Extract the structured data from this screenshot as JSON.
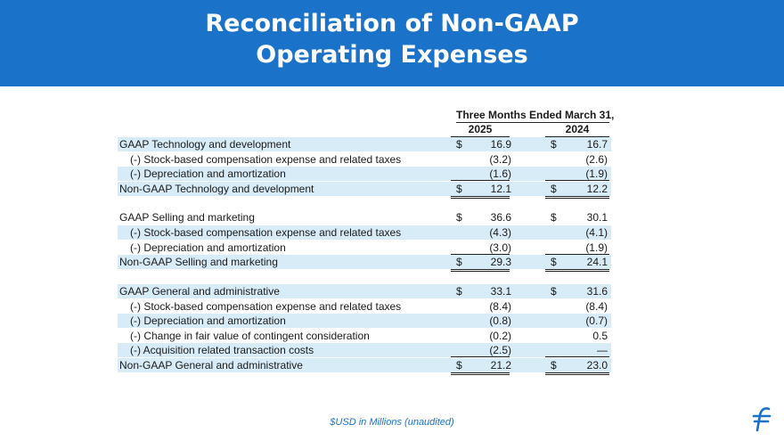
{
  "title": {
    "line1": "Reconciliation of Non-GAAP",
    "line2": "Operating Expenses"
  },
  "header": {
    "period": "Three Months Ended March 31,",
    "col_2025": "2025",
    "col_2024": "2024"
  },
  "rows": [
    {
      "label": "GAAP Technology and development",
      "v2025": "16.9",
      "v2024": "16.7",
      "dollar": true
    },
    {
      "label": "(-) Stock-based compensation expense and related taxes",
      "v2025": "(3.2)",
      "v2024": "(2.6)"
    },
    {
      "label": "(-) Depreciation and amortization",
      "v2025": "(1.6)",
      "v2024": "(1.9)"
    },
    {
      "label": "Non-GAAP Technology and development",
      "v2025": "12.1",
      "v2024": "12.2",
      "dollar": true
    },
    {
      "label": "GAAP Selling and marketing",
      "v2025": "36.6",
      "v2024": "30.1",
      "dollar": true
    },
    {
      "label": "(-) Stock-based compensation expense and related taxes",
      "v2025": "(4.3)",
      "v2024": "(4.1)"
    },
    {
      "label": "(-) Depreciation and amortization",
      "v2025": "(3.0)",
      "v2024": "(1.9)"
    },
    {
      "label": "Non-GAAP Selling and marketing",
      "v2025": "29.3",
      "v2024": "24.1",
      "dollar": true
    },
    {
      "label": "GAAP General and administrative",
      "v2025": "33.1",
      "v2024": "31.6",
      "dollar": true
    },
    {
      "label": "(-) Stock-based compensation expense and related taxes",
      "v2025": "(8.4)",
      "v2024": "(8.4)"
    },
    {
      "label": "(-) Depreciation and amortization",
      "v2025": "(0.8)",
      "v2024": "(0.7)"
    },
    {
      "label": "(-) Change in fair value of contingent consideration",
      "v2025": "(0.2)",
      "v2024": "0.5"
    },
    {
      "label": "(-) Acquisition related transaction costs",
      "v2025": "(2.5)",
      "v2024": "—"
    },
    {
      "label": "Non-GAAP General and administrative",
      "v2025": "21.2",
      "v2024": "23.0",
      "dollar": true
    }
  ],
  "currency_symbol": "$",
  "footnote": "$USD in Millions (unaudited)",
  "brand_color": "#1a73c9",
  "logo_icon": "brand-f-logo-icon"
}
